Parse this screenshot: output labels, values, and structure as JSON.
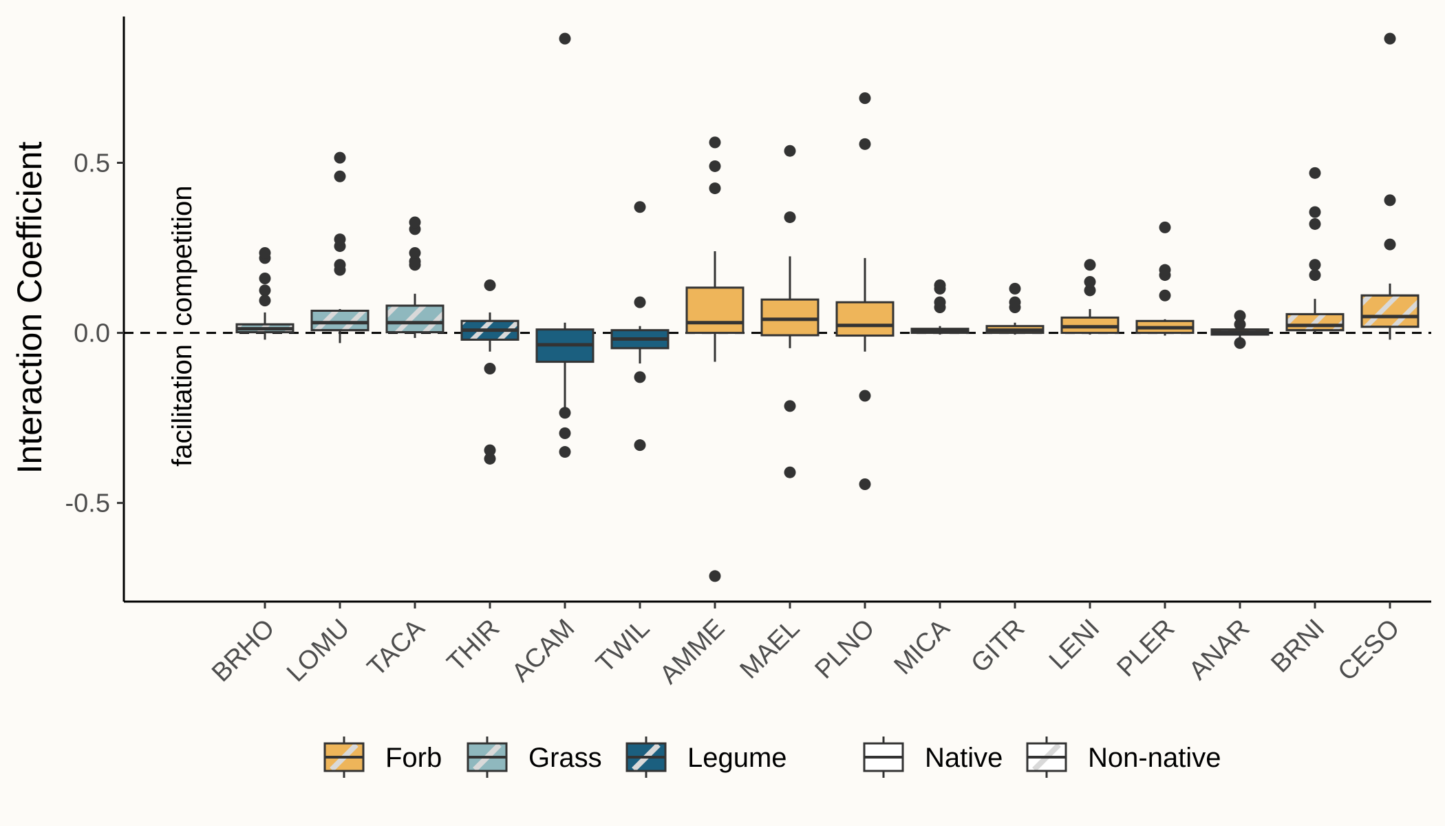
{
  "chart_data": {
    "type": "box",
    "ylabel": "Interaction Coefficient",
    "xlabel": "",
    "ylim": [
      -0.79,
      0.93
    ],
    "yticks": [
      -0.5,
      0.0,
      0.5
    ],
    "ytick_labels": [
      "-0.5",
      "0.0",
      "0.5"
    ],
    "reference_line": {
      "y": 0,
      "style": "dashed"
    },
    "annotations": {
      "above": "competition",
      "below": "facilitation"
    },
    "colors": {
      "Forb": "#eeb55a",
      "Grass": "#8fb8be",
      "Legume": "#1b5f7f"
    },
    "categories": [
      {
        "name": "BRHO",
        "group": "Grass",
        "native": false,
        "q1": 0.002,
        "median": 0.012,
        "q3": 0.025,
        "whisker_low": -0.02,
        "whisker_high": 0.06,
        "outliers": [
          0.095,
          0.125,
          0.16,
          0.22,
          0.235
        ]
      },
      {
        "name": "LOMU",
        "group": "Grass",
        "native": false,
        "q1": 0.008,
        "median": 0.03,
        "q3": 0.065,
        "whisker_low": -0.03,
        "whisker_high": 0.07,
        "outliers": [
          0.185,
          0.2,
          0.255,
          0.275,
          0.46,
          0.515
        ]
      },
      {
        "name": "TACA",
        "group": "Grass",
        "native": false,
        "q1": 0.002,
        "median": 0.03,
        "q3": 0.08,
        "whisker_low": -0.015,
        "whisker_high": 0.115,
        "outliers": [
          0.2,
          0.21,
          0.235,
          0.305,
          0.325
        ]
      },
      {
        "name": "THIR",
        "group": "Legume",
        "native": false,
        "q1": -0.02,
        "median": 0.008,
        "q3": 0.035,
        "whisker_low": -0.055,
        "whisker_high": 0.06,
        "outliers": [
          -0.37,
          -0.345,
          -0.105,
          0.14
        ]
      },
      {
        "name": "ACAM",
        "group": "Legume",
        "native": true,
        "q1": -0.085,
        "median": -0.035,
        "q3": 0.01,
        "whisker_low": -0.22,
        "whisker_high": 0.03,
        "outliers": [
          -0.35,
          -0.295,
          -0.235,
          0.865
        ]
      },
      {
        "name": "TWIL",
        "group": "Legume",
        "native": true,
        "q1": -0.045,
        "median": -0.018,
        "q3": 0.008,
        "whisker_low": -0.09,
        "whisker_high": 0.02,
        "outliers": [
          -0.33,
          -0.13,
          0.09,
          0.37
        ]
      },
      {
        "name": "AMME",
        "group": "Forb",
        "native": true,
        "q1": 0.0,
        "median": 0.03,
        "q3": 0.133,
        "whisker_low": -0.085,
        "whisker_high": 0.24,
        "outliers": [
          -0.715,
          0.425,
          0.49,
          0.56
        ]
      },
      {
        "name": "MAEL",
        "group": "Forb",
        "native": true,
        "q1": -0.007,
        "median": 0.04,
        "q3": 0.098,
        "whisker_low": -0.045,
        "whisker_high": 0.225,
        "outliers": [
          -0.41,
          -0.215,
          0.34,
          0.535
        ]
      },
      {
        "name": "PLNO",
        "group": "Forb",
        "native": true,
        "q1": -0.008,
        "median": 0.022,
        "q3": 0.09,
        "whisker_low": -0.055,
        "whisker_high": 0.22,
        "outliers": [
          -0.445,
          -0.185,
          0.555,
          0.69
        ]
      },
      {
        "name": "MICA",
        "group": "Forb",
        "native": true,
        "q1": 0.0,
        "median": 0.005,
        "q3": 0.012,
        "whisker_low": -0.005,
        "whisker_high": 0.02,
        "outliers": [
          0.075,
          0.09,
          0.13,
          0.14
        ]
      },
      {
        "name": "GITR",
        "group": "Forb",
        "native": true,
        "q1": 0.0,
        "median": 0.008,
        "q3": 0.02,
        "whisker_low": -0.005,
        "whisker_high": 0.03,
        "outliers": [
          0.075,
          0.09,
          0.13
        ]
      },
      {
        "name": "LENI",
        "group": "Forb",
        "native": true,
        "q1": 0.0,
        "median": 0.018,
        "q3": 0.045,
        "whisker_low": -0.005,
        "whisker_high": 0.07,
        "outliers": [
          0.125,
          0.15,
          0.2
        ]
      },
      {
        "name": "PLER",
        "group": "Forb",
        "native": true,
        "q1": 0.0,
        "median": 0.015,
        "q3": 0.035,
        "whisker_low": -0.008,
        "whisker_high": 0.04,
        "outliers": [
          0.11,
          0.17,
          0.185,
          0.31
        ]
      },
      {
        "name": "ANAR",
        "group": "Forb",
        "native": false,
        "q1": -0.005,
        "median": 0.002,
        "q3": 0.01,
        "whisker_low": -0.015,
        "whisker_high": 0.02,
        "outliers": [
          -0.03,
          0.025,
          0.05
        ]
      },
      {
        "name": "BRNI",
        "group": "Forb",
        "native": false,
        "q1": 0.008,
        "median": 0.022,
        "q3": 0.055,
        "whisker_low": 0.0,
        "whisker_high": 0.1,
        "outliers": [
          0.17,
          0.2,
          0.32,
          0.355,
          0.47
        ]
      },
      {
        "name": "CESO",
        "group": "Forb",
        "native": false,
        "q1": 0.018,
        "median": 0.048,
        "q3": 0.11,
        "whisker_low": -0.02,
        "whisker_high": 0.145,
        "outliers": [
          0.26,
          0.39,
          0.865
        ]
      }
    ],
    "legend": {
      "placement": "bottom",
      "fill_items": [
        {
          "label": "Forb",
          "color": "#eeb55a"
        },
        {
          "label": "Grass",
          "color": "#8fb8be"
        },
        {
          "label": "Legume",
          "color": "#1b5f7f"
        }
      ],
      "pattern_items": [
        {
          "label": "Native",
          "pattern": "none"
        },
        {
          "label": "Non-native",
          "pattern": "stripe"
        }
      ]
    }
  }
}
